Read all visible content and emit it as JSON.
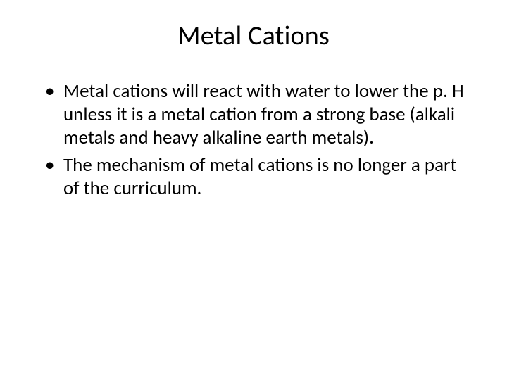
{
  "slide": {
    "title": "Metal Cations",
    "bullets": [
      "Metal cations will react with water to lower the p. H unless it is a metal cation from a strong base (alkali metals and heavy alkaline earth metals).",
      "The mechanism of metal cations is no longer a part of the curriculum."
    ],
    "background_color": "#ffffff",
    "text_color": "#000000",
    "title_fontsize": 38,
    "body_fontsize": 27
  }
}
